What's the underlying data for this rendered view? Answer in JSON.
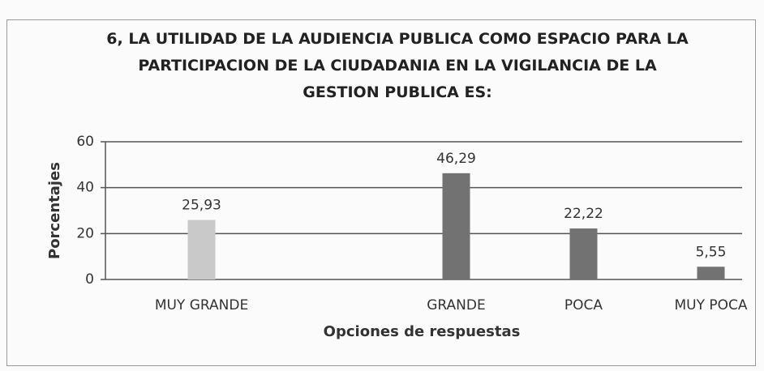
{
  "chart_data": {
    "type": "bar",
    "title": "6, LA UTILIDAD DE LA AUDIENCIA PUBLICA COMO ESPACIO PARA LA PARTICIPACION DE LA CIUDADANIA EN LA VIGILANCIA DE LA GESTION PUBLICA ES:",
    "categories": [
      "MUY GRANDE",
      null,
      "GRANDE",
      "POCA",
      "MUY POCA"
    ],
    "values": [
      25.93,
      null,
      46.29,
      22.22,
      5.55
    ],
    "value_labels": [
      "25,93",
      null,
      "46,29",
      "22,22",
      "5,55"
    ],
    "colors": [
      "#c9c9c9",
      null,
      "#727272",
      "#727272",
      "#727272"
    ],
    "x_label": "Opciones de respuestas",
    "y_label": "Porcentajes",
    "ylim": [
      0,
      60
    ],
    "yticks": [
      0,
      20,
      40,
      60
    ],
    "grid": true
  }
}
